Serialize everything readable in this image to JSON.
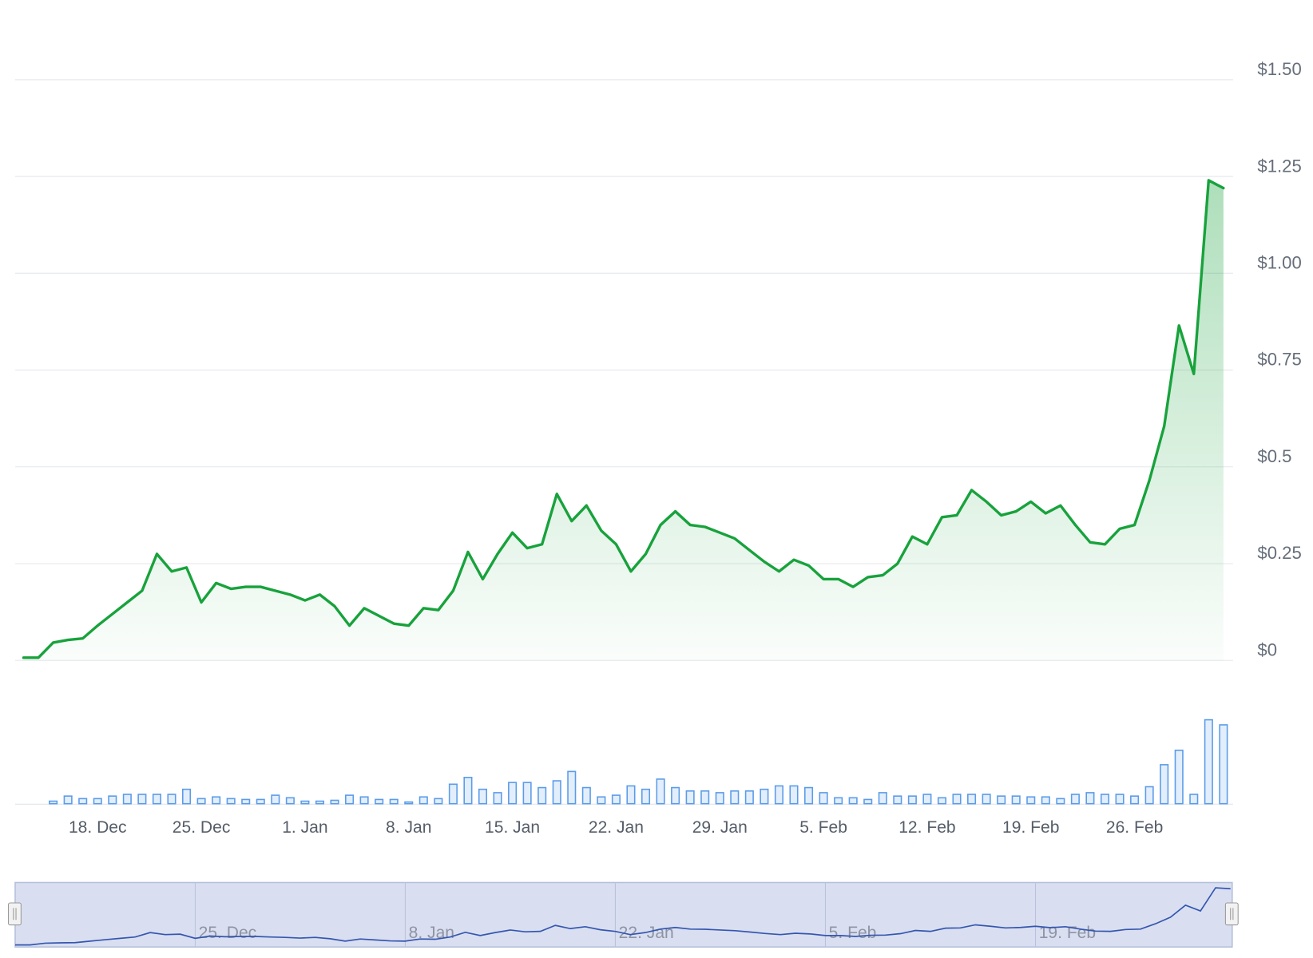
{
  "chart_data": {
    "type": "line",
    "categories": [
      null,
      null,
      null,
      null,
      null,
      "18. Dec",
      null,
      null,
      null,
      null,
      null,
      null,
      "25. Dec",
      null,
      null,
      null,
      null,
      null,
      null,
      "1. Jan",
      null,
      null,
      null,
      null,
      null,
      null,
      "8. Jan",
      null,
      null,
      null,
      null,
      null,
      null,
      "15. Jan",
      null,
      null,
      null,
      null,
      null,
      null,
      "22. Jan",
      null,
      null,
      null,
      null,
      null,
      null,
      "29. Jan",
      null,
      null,
      null,
      null,
      null,
      null,
      "5. Feb",
      null,
      null,
      null,
      null,
      null,
      null,
      "12. Feb",
      null,
      null,
      null,
      null,
      null,
      null,
      "19. Feb",
      null,
      null,
      null,
      null,
      null,
      null,
      "26. Feb",
      null,
      null,
      null,
      null,
      null,
      null
    ],
    "values": [
      0.007,
      0.007,
      0.046,
      0.053,
      0.057,
      0.09,
      0.12,
      0.15,
      0.18,
      0.275,
      0.23,
      0.24,
      0.15,
      0.2,
      0.185,
      0.19,
      0.19,
      0.18,
      0.17,
      0.155,
      0.17,
      0.14,
      0.09,
      0.135,
      0.115,
      0.095,
      0.09,
      0.135,
      0.13,
      0.18,
      0.28,
      0.21,
      0.275,
      0.33,
      0.29,
      0.3,
      0.43,
      0.36,
      0.4,
      0.335,
      0.3,
      0.23,
      0.275,
      0.35,
      0.385,
      0.35,
      0.345,
      0.33,
      0.315,
      0.285,
      0.255,
      0.23,
      0.26,
      0.245,
      0.21,
      0.21,
      0.19,
      0.215,
      0.22,
      0.25,
      0.32,
      0.3,
      0.37,
      0.375,
      0.44,
      0.41,
      0.375,
      0.385,
      0.41,
      0.38,
      0.4,
      0.35,
      0.305,
      0.3,
      0.34,
      0.35,
      0.465,
      0.605,
      0.865,
      0.74,
      1.24,
      1.22
    ],
    "color": "#18a23c",
    "volume": [
      0,
      0,
      3,
      9,
      6,
      6,
      9,
      11,
      11,
      11,
      11,
      17,
      6,
      8,
      6,
      5,
      5,
      10,
      7,
      3,
      3,
      4,
      10,
      8,
      5,
      5,
      2,
      8,
      6,
      23,
      31,
      17,
      13,
      25,
      25,
      19,
      27,
      38,
      19,
      8,
      10,
      21,
      17,
      29,
      19,
      15,
      15,
      13,
      15,
      15,
      17,
      21,
      21,
      19,
      13,
      7,
      7,
      5,
      13,
      9,
      9,
      11,
      7,
      11,
      11,
      11,
      9,
      9,
      8,
      8,
      6,
      11,
      13,
      11,
      11,
      9,
      20,
      46,
      63,
      11,
      99,
      93
    ],
    "volume_color": "#5b9ce8",
    "ylim": [
      0,
      1.5
    ],
    "yticks": [
      {
        "value": 0,
        "label": "$0"
      },
      {
        "value": 0.25,
        "label": "$0.25"
      },
      {
        "value": 0.5,
        "label": "$0.5"
      },
      {
        "value": 0.75,
        "label": "$0.75"
      },
      {
        "value": 1,
        "label": "$1.00"
      },
      {
        "value": 1.25,
        "label": "$1.25"
      },
      {
        "value": 1.5,
        "label": "$1.50"
      }
    ],
    "grid": true,
    "navigator": {
      "labels": [
        "25. Dec",
        "8. Jan",
        "22. Jan",
        "5. Feb",
        "19. Feb"
      ],
      "color": "#3556b0"
    }
  }
}
